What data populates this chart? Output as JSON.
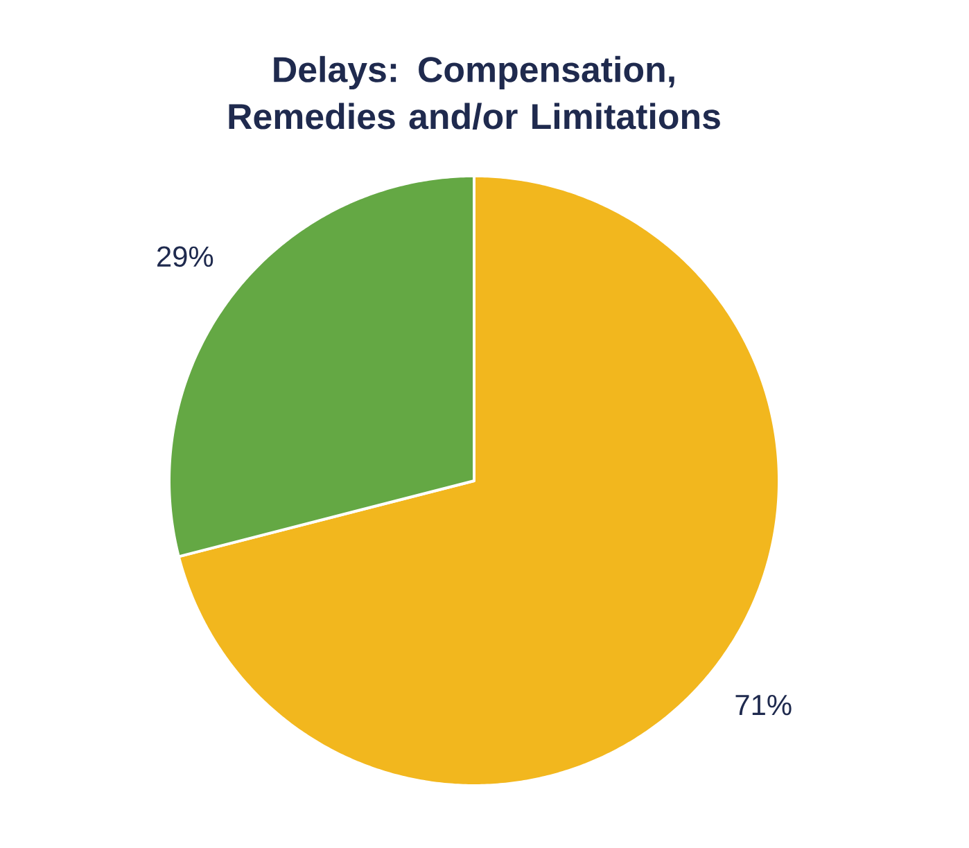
{
  "chart_data": {
    "type": "pie",
    "title": "Delays: Compensation, Remedies and/or Limitations",
    "categories": [
      null,
      null
    ],
    "values": [
      71,
      29
    ],
    "colors": [
      "#f2b71e",
      "#64a844"
    ],
    "value_labels": [
      "71%",
      "29%"
    ]
  }
}
